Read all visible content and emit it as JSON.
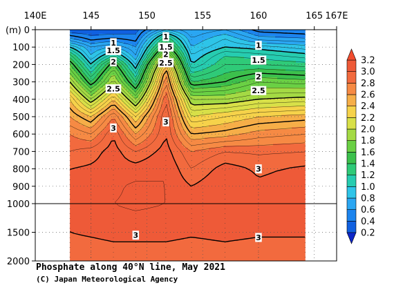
{
  "title": "Phosphate along 40°N line, May 2021",
  "credit": "(C) Japan Meteorological Agency",
  "chart_data": {
    "type": "heatmap",
    "variable": "Phosphate",
    "x_axis": {
      "ticks": [
        140,
        145,
        150,
        155,
        160,
        165,
        167
      ],
      "tick_labels": [
        "140E",
        "145",
        "150",
        "155",
        "160",
        "165",
        "167E"
      ],
      "range": [
        140,
        167
      ]
    },
    "y_axis": {
      "unit_label": "(m)",
      "upper_ticks": [
        0,
        100,
        200,
        300,
        400,
        500,
        600,
        700,
        800,
        900,
        1000
      ],
      "lower_ticks": [
        1500,
        2000
      ],
      "break_depth": 1000,
      "range": [
        0,
        2000
      ]
    },
    "colorbar": {
      "levels": [
        0.2,
        0.4,
        0.6,
        0.8,
        1.0,
        1.2,
        1.4,
        1.6,
        1.8,
        2.0,
        2.2,
        2.4,
        2.6,
        2.8,
        3.0,
        3.2
      ],
      "tick_labels": [
        "0.2",
        "0.4",
        "0.6",
        "0.8",
        "1.0",
        "1.2",
        "1.4",
        "1.6",
        "1.8",
        "2.0",
        "2.2",
        "2.4",
        "2.6",
        "2.8",
        "3.0",
        "3.2"
      ],
      "colors": [
        "#1060e0",
        "#1c84ee",
        "#2aa6f2",
        "#2ec4e8",
        "#26ccb0",
        "#2fca78",
        "#3cc04c",
        "#6ad044",
        "#a4da44",
        "#d8e048",
        "#f6d24a",
        "#f6ae48",
        "#f68a44",
        "#f26a3e",
        "#ee5a38"
      ],
      "under_color": "#0d26c8",
      "over_color": "#f24c2e"
    },
    "station_longitudes": [
      143.1,
      145.0,
      147.0,
      149.0,
      151.7,
      154.0,
      157.0,
      160.0,
      164.2
    ],
    "depths": [
      0,
      50,
      100,
      150,
      200,
      250,
      300,
      400,
      500,
      600,
      700,
      800,
      900,
      1000,
      1500,
      2000
    ],
    "values": [
      [
        0.3,
        0.3,
        0.3,
        0.35,
        0.8,
        0.6,
        0.7,
        0.45,
        0.4
      ],
      [
        0.6,
        0.45,
        0.5,
        0.45,
        1.3,
        0.7,
        0.9,
        0.65,
        0.6
      ],
      [
        1.0,
        0.7,
        0.8,
        0.6,
        1.6,
        0.8,
        1.0,
        0.95,
        0.85
      ],
      [
        1.35,
        0.8,
        1.2,
        0.7,
        2.0,
        0.9,
        1.2,
        1.15,
        1.05
      ],
      [
        1.6,
        1.0,
        1.6,
        0.9,
        2.4,
        1.0,
        1.3,
        1.3,
        1.25
      ],
      [
        1.8,
        1.2,
        1.8,
        1.1,
        2.6,
        1.2,
        1.4,
        1.5,
        1.45
      ],
      [
        2.0,
        1.4,
        1.95,
        1.3,
        2.7,
        1.4,
        1.5,
        1.7,
        1.65
      ],
      [
        2.4,
        1.9,
        2.4,
        1.8,
        2.9,
        1.9,
        1.9,
        2.0,
        2.05
      ],
      [
        2.6,
        2.4,
        2.8,
        2.3,
        3.0,
        2.2,
        2.3,
        2.4,
        2.45
      ],
      [
        2.8,
        2.7,
        3.0,
        2.6,
        3.0,
        2.5,
        2.55,
        2.65,
        2.7
      ],
      [
        2.9,
        2.95,
        3.05,
        2.9,
        3.05,
        2.8,
        2.9,
        2.88,
        2.9
      ],
      [
        3.0,
        3.02,
        3.05,
        3.05,
        3.1,
        2.9,
        3.05,
        2.98,
        3.02
      ],
      [
        3.05,
        3.08,
        3.08,
        3.12,
        3.1,
        3.0,
        3.1,
        3.02,
        3.05
      ],
      [
        3.05,
        3.08,
        3.1,
        3.12,
        3.1,
        3.04,
        3.1,
        3.04,
        3.06
      ],
      [
        3.0,
        3.02,
        3.04,
        3.04,
        3.04,
        3.02,
        3.04,
        3.02,
        3.02
      ],
      [
        2.9,
        2.9,
        2.92,
        2.92,
        2.92,
        2.9,
        2.92,
        2.9,
        2.9
      ]
    ],
    "contour_labels": [
      "1",
      "1.5",
      "2",
      "2.5",
      "3",
      "1",
      "1.5",
      "2",
      "2.5",
      "3",
      "1",
      "1.5",
      "2",
      "2.5",
      "3",
      "3",
      "3"
    ],
    "grid": "dotted"
  }
}
